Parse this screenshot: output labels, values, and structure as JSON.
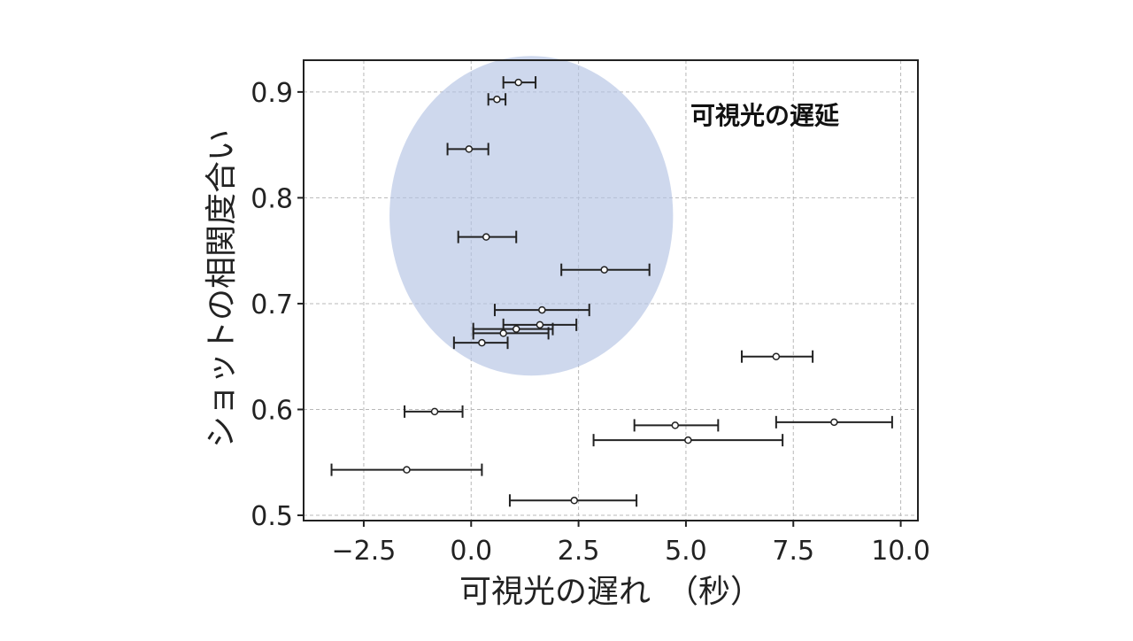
{
  "chart_data": {
    "type": "scatter",
    "title": "",
    "xlabel": "可視光の遅れ　（秒）",
    "ylabel": "ショットの相関度合い",
    "xlim": [
      -3.9,
      10.4
    ],
    "ylim": [
      0.495,
      0.93
    ],
    "xticks": [
      -2.5,
      0.0,
      2.5,
      5.0,
      7.5,
      10.0
    ],
    "xtick_labels": [
      "−2.5",
      "0.0",
      "2.5",
      "5.0",
      "7.5",
      "10.0"
    ],
    "yticks": [
      0.5,
      0.6,
      0.7,
      0.8,
      0.9
    ],
    "ytick_labels": [
      "0.5",
      "0.6",
      "0.7",
      "0.8",
      "0.9"
    ],
    "grid": true,
    "annotation": {
      "text": "可視光の遅延",
      "highlight_center": [
        1.4,
        0.783
      ],
      "highlight_radius": [
        3.3,
        0.151
      ]
    },
    "colors": {
      "highlight": "#b4c3e3",
      "marker": "#222222"
    },
    "points": [
      {
        "x": 1.1,
        "y": 0.909,
        "xerr_low": 0.75,
        "xerr_high": 1.5
      },
      {
        "x": 0.6,
        "y": 0.893,
        "xerr_low": 0.4,
        "xerr_high": 0.8
      },
      {
        "x": -0.05,
        "y": 0.846,
        "xerr_low": -0.55,
        "xerr_high": 0.4
      },
      {
        "x": 0.35,
        "y": 0.763,
        "xerr_low": -0.3,
        "xerr_high": 1.05
      },
      {
        "x": 3.1,
        "y": 0.732,
        "xerr_low": 2.1,
        "xerr_high": 4.15
      },
      {
        "x": 1.65,
        "y": 0.694,
        "xerr_low": 0.55,
        "xerr_high": 2.75
      },
      {
        "x": 1.6,
        "y": 0.68,
        "xerr_low": 0.75,
        "xerr_high": 2.45
      },
      {
        "x": 1.05,
        "y": 0.676,
        "xerr_low": 0.05,
        "xerr_high": 1.9
      },
      {
        "x": 0.75,
        "y": 0.672,
        "xerr_low": 0.05,
        "xerr_high": 1.8
      },
      {
        "x": 0.25,
        "y": 0.663,
        "xerr_low": -0.4,
        "xerr_high": 0.85
      },
      {
        "x": 7.1,
        "y": 0.65,
        "xerr_low": 6.3,
        "xerr_high": 7.95
      },
      {
        "x": -0.85,
        "y": 0.598,
        "xerr_low": -1.55,
        "xerr_high": -0.2
      },
      {
        "x": 8.45,
        "y": 0.588,
        "xerr_low": 7.1,
        "xerr_high": 9.8
      },
      {
        "x": 4.75,
        "y": 0.585,
        "xerr_low": 3.8,
        "xerr_high": 5.75
      },
      {
        "x": 5.05,
        "y": 0.571,
        "xerr_low": 2.85,
        "xerr_high": 7.25
      },
      {
        "x": -1.5,
        "y": 0.543,
        "xerr_low": -3.25,
        "xerr_high": 0.25
      },
      {
        "x": 2.4,
        "y": 0.514,
        "xerr_low": 0.9,
        "xerr_high": 3.85
      }
    ]
  }
}
